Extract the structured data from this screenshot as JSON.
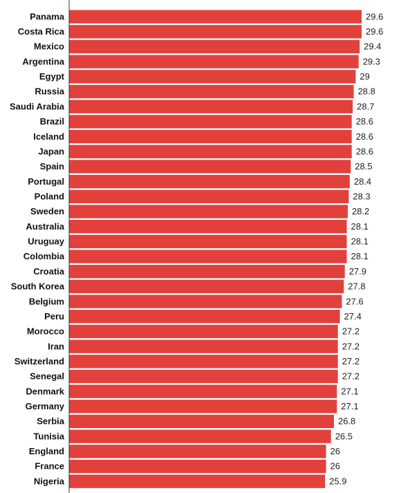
{
  "chart_data": {
    "type": "bar",
    "orientation": "horizontal",
    "title": "",
    "xlabel": "",
    "ylabel": "",
    "categories": [
      "Panama",
      "Costa Rica",
      "Mexico",
      "Argentina",
      "Egypt",
      "Russia",
      "Saudi Arabia",
      "Brazil",
      "Iceland",
      "Japan",
      "Spain",
      "Portugal",
      "Poland",
      "Sweden",
      "Australia",
      "Uruguay",
      "Colombia",
      "Croatia",
      "South Korea",
      "Belgium",
      "Peru",
      "Morocco",
      "Iran",
      "Switzerland",
      "Senegal",
      "Denmark",
      "Germany",
      "Serbia",
      "Tunisia",
      "England",
      "France",
      "Nigeria"
    ],
    "values": [
      29.6,
      29.6,
      29.4,
      29.3,
      29,
      28.8,
      28.7,
      28.6,
      28.6,
      28.6,
      28.5,
      28.4,
      28.3,
      28.2,
      28.1,
      28.1,
      28.1,
      27.9,
      27.8,
      27.6,
      27.4,
      27.2,
      27.2,
      27.2,
      27.2,
      27.1,
      27.1,
      26.8,
      26.5,
      26,
      26,
      25.9
    ],
    "value_labels": [
      "29.6",
      "29.6",
      "29.4",
      "29.3",
      "29",
      "28.8",
      "28.7",
      "28.6",
      "28.6",
      "28.6",
      "28.5",
      "28.4",
      "28.3",
      "28.2",
      "28.1",
      "28.1",
      "28.1",
      "27.9",
      "27.8",
      "27.6",
      "27.4",
      "27.2",
      "27.2",
      "27.2",
      "27.2",
      "27.1",
      "27.1",
      "26.8",
      "26.5",
      "26",
      "26",
      "25.9"
    ],
    "xlim": [
      0,
      29.6
    ],
    "grid": false,
    "legend": "none",
    "bar_color": "#e2403b",
    "bar_edge_color": "#ffffff"
  }
}
